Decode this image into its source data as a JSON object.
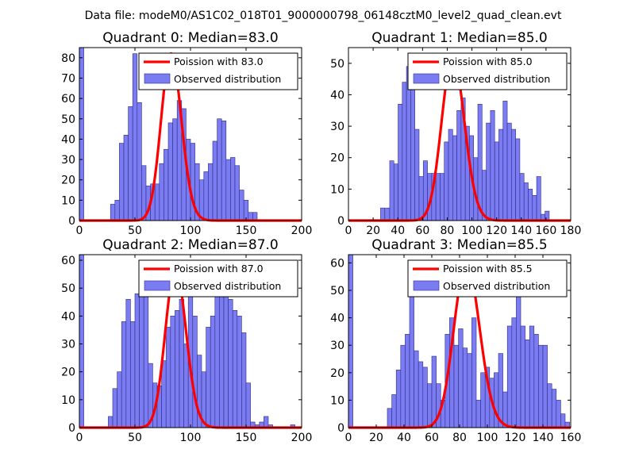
{
  "figure": {
    "suptitle": "Data file: modeM0/AS1C02_018T01_9000000798_06148cztM0_level2_quad_clean.evt",
    "bar_color": "#7b7bf2",
    "bar_edge_color": "#2d2d88",
    "curve_color": "#ff0000"
  },
  "chart_data": [
    {
      "type": "bar",
      "title": "Quadrant 0: Median=83.0",
      "xlim": [
        0,
        200
      ],
      "ylim": [
        0,
        85
      ],
      "xticks": [
        0,
        50,
        100,
        150,
        200
      ],
      "yticks": [
        0,
        10,
        20,
        30,
        40,
        50,
        60,
        70,
        80
      ],
      "bin_width": 4,
      "bins_start": [
        0,
        28,
        32,
        36,
        40,
        44,
        48,
        52,
        56,
        60,
        64,
        68,
        72,
        76,
        80,
        84,
        88,
        92,
        96,
        100,
        104,
        108,
        112,
        116,
        120,
        124,
        128,
        132,
        136,
        140,
        144,
        148,
        152,
        156,
        160
      ],
      "counts": [
        85,
        8,
        10,
        38,
        42,
        56,
        82,
        58,
        27,
        17,
        18,
        18,
        28,
        35,
        48,
        50,
        59,
        55,
        40,
        38,
        28,
        20,
        24,
        28,
        39,
        50,
        49,
        30,
        31,
        27,
        15,
        10,
        4,
        4,
        0
      ],
      "legend": {
        "curve_label": "Poission with 83.0",
        "bars_label": "Observed distribution",
        "location": "upper-right"
      },
      "poisson_mean": 83.0,
      "poisson_peak": 82
    },
    {
      "type": "bar",
      "title": "Quadrant 1: Median=85.0",
      "xlim": [
        0,
        180
      ],
      "ylim": [
        0,
        55
      ],
      "xticks": [
        0,
        20,
        40,
        60,
        80,
        100,
        120,
        140,
        160,
        180
      ],
      "yticks": [
        0,
        10,
        20,
        30,
        40,
        50
      ],
      "bin_width": 3.4,
      "bins_start": [
        26,
        30,
        33.4,
        36.8,
        40.2,
        43.6,
        47,
        50.4,
        53.8,
        57.2,
        60.6,
        64,
        67.4,
        70.8,
        74.2,
        77.6,
        81,
        84.4,
        87.8,
        91.2,
        94.6,
        98,
        101.4,
        104.8,
        108.2,
        111.6,
        115,
        118.4,
        121.8,
        125.2,
        128.6,
        132,
        135.4,
        138.8,
        142.2,
        145.6,
        149,
        152.4,
        155.8,
        159.2,
        162.6
      ],
      "counts": [
        4,
        4,
        19,
        18,
        37,
        44,
        49,
        42,
        29,
        14,
        19,
        15,
        15,
        15,
        15,
        25,
        29,
        27,
        35,
        39,
        30,
        27,
        20,
        37,
        16,
        31,
        35,
        25,
        29,
        38,
        31,
        29,
        26,
        15,
        12,
        10,
        8,
        14,
        2,
        3,
        0
      ],
      "legend": {
        "curve_label": "Poission with 85.0",
        "bars_label": "Observed distribution",
        "location": "upper-right"
      },
      "poisson_mean": 85.0,
      "poisson_peak": 52
    },
    {
      "type": "bar",
      "title": "Quadrant 2: Median=87.0",
      "xlim": [
        0,
        200
      ],
      "ylim": [
        0,
        62
      ],
      "xticks": [
        0,
        50,
        100,
        150,
        200
      ],
      "yticks": [
        0,
        10,
        20,
        30,
        40,
        50,
        60
      ],
      "bin_width": 4,
      "bins_start": [
        0,
        26,
        30,
        34,
        38,
        42,
        46,
        50,
        54,
        58,
        62,
        66,
        70,
        74,
        78,
        82,
        86,
        90,
        94,
        98,
        102,
        106,
        110,
        114,
        118,
        122,
        126,
        130,
        134,
        138,
        142,
        146,
        150,
        154,
        158,
        162,
        166,
        170,
        174,
        178,
        182,
        186,
        190
      ],
      "counts": [
        62,
        4,
        14,
        20,
        38,
        46,
        38,
        48,
        52,
        56,
        23,
        16,
        15,
        24,
        36,
        40,
        42,
        46,
        30,
        48,
        40,
        26,
        20,
        36,
        40,
        51,
        58,
        52,
        46,
        42,
        40,
        34,
        16,
        2,
        1,
        2,
        4,
        1,
        0,
        0,
        0,
        0,
        1
      ],
      "legend": {
        "curve_label": "Poission with 87.0",
        "bars_label": "Observed distribution",
        "location": "upper-right"
      },
      "poisson_mean": 87.0,
      "poisson_peak": 57
    },
    {
      "type": "bar",
      "title": "Quadrant 3: Median=85.5",
      "xlim": [
        0,
        160
      ],
      "ylim": [
        0,
        63
      ],
      "xticks": [
        0,
        20,
        40,
        60,
        80,
        100,
        120,
        140,
        160
      ],
      "yticks": [
        0,
        10,
        20,
        30,
        40,
        50,
        60
      ],
      "bin_width": 3.2,
      "bins_start": [
        0,
        28,
        31.2,
        34.4,
        37.6,
        40.8,
        44,
        47.2,
        50.4,
        53.6,
        56.8,
        60,
        63.2,
        66.4,
        69.6,
        72.8,
        76,
        79.2,
        82.4,
        85.6,
        88.8,
        92,
        95.2,
        98.4,
        101.6,
        104.8,
        108,
        111.2,
        114.4,
        117.6,
        120.8,
        124,
        127.2,
        130.4,
        133.6,
        136.8,
        140,
        143.2,
        146.4,
        149.6,
        152.8,
        156
      ],
      "counts": [
        63,
        7,
        12,
        21,
        30,
        34,
        56,
        28,
        24,
        22,
        16,
        26,
        16,
        10,
        34,
        40,
        30,
        36,
        29,
        27,
        40,
        10,
        20,
        22,
        18,
        20,
        27,
        13,
        37,
        40,
        52,
        37,
        32,
        37,
        34,
        30,
        30,
        16,
        14,
        10,
        5,
        2
      ],
      "legend": {
        "curve_label": "Poission with 85.5",
        "bars_label": "Observed distribution",
        "location": "upper-right"
      },
      "poisson_mean": 85.5,
      "poisson_peak": 60
    }
  ]
}
